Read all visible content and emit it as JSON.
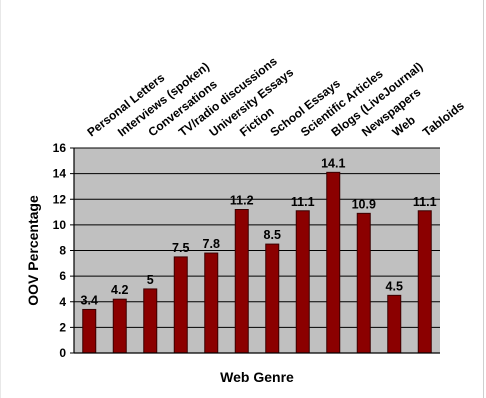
{
  "chart_data": {
    "type": "bar",
    "title": "",
    "xlabel": "Web Genre",
    "ylabel": "OOV Percentage",
    "categories": [
      "Personal Letters",
      "Interviews (spoken)",
      "Conversations",
      "TV/radio discussions",
      "University Essays",
      "Fiction",
      "School Essays",
      "Scientific Articles",
      "Blogs (LiveJournal)",
      "Newspapers",
      "Web",
      "Tabloids"
    ],
    "values": [
      3.4,
      4.2,
      5,
      7.5,
      7.8,
      11.2,
      8.5,
      11.1,
      14.1,
      10.9,
      4.5,
      11.1
    ],
    "data_labels": [
      "3.4",
      "4.2",
      "5",
      "7.5",
      "7.8",
      "11.2",
      "8.5",
      "11.1",
      "14.1",
      "10.9",
      "4.5",
      "11.1"
    ],
    "ylim": [
      0,
      16
    ],
    "yticks": [
      0,
      2,
      4,
      6,
      8,
      10,
      12,
      14,
      16
    ],
    "grid": true,
    "legend": "none",
    "colors": {
      "bar": "#8b0000",
      "bar_edge": "#3a0000",
      "plot_background": "#c0c0c0",
      "gridline": "#000000",
      "axis": "#000000"
    }
  }
}
